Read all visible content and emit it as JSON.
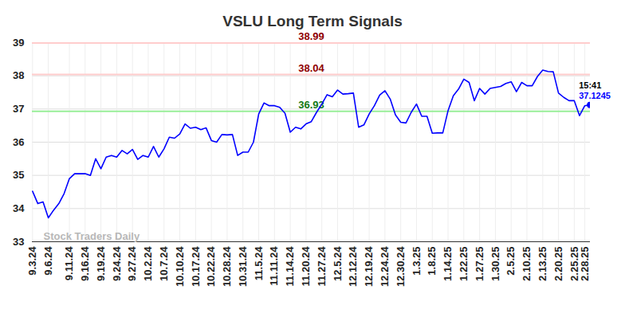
{
  "chart_data": {
    "type": "line",
    "title": "VSLU Long Term Signals",
    "categories": [
      "9.3.24",
      null,
      null,
      "9.6.24",
      null,
      null,
      null,
      "9.11.24",
      null,
      null,
      "9.16.24",
      null,
      null,
      "9.19.24",
      null,
      null,
      "9.24.24",
      null,
      null,
      "9.27.24",
      null,
      null,
      "10.2.24",
      null,
      null,
      "10.7.24",
      null,
      null,
      "10.10.24",
      null,
      null,
      "10.17.24",
      null,
      null,
      "10.22.24",
      null,
      null,
      "10.28.24",
      null,
      null,
      "10.31.24",
      null,
      null,
      "11.5.24",
      null,
      null,
      "11.11.24",
      null,
      null,
      "11.14.24",
      null,
      null,
      "11.20.24",
      null,
      null,
      "11.27.24",
      null,
      null,
      "12.5.24",
      null,
      null,
      "12.12.24",
      null,
      null,
      "12.19.24",
      null,
      null,
      "12.24.24",
      null,
      null,
      "12.30.24",
      null,
      null,
      "1.3.25",
      null,
      null,
      "1.8.25",
      null,
      null,
      "1.14.25",
      null,
      null,
      "1.22.25",
      null,
      null,
      "1.27.25",
      null,
      null,
      "1.30.25",
      null,
      null,
      "2.5.25",
      null,
      null,
      "2.10.25",
      null,
      null,
      "2.13.25",
      null,
      null,
      "2.20.25",
      null,
      null,
      "2.25.25",
      null,
      "2.28.25",
      null
    ],
    "values": [
      34.52,
      34.15,
      34.2,
      33.72,
      33.95,
      34.15,
      34.45,
      34.9,
      35.05,
      35.05,
      35.05,
      35.0,
      35.5,
      35.2,
      35.55,
      35.6,
      35.55,
      35.75,
      35.65,
      35.78,
      35.48,
      35.6,
      35.55,
      35.87,
      35.55,
      35.8,
      36.15,
      36.12,
      36.25,
      36.55,
      36.42,
      36.45,
      36.38,
      36.43,
      36.05,
      36.0,
      36.23,
      36.22,
      36.23,
      35.6,
      35.7,
      35.7,
      36.0,
      36.85,
      37.18,
      37.1,
      37.1,
      37.05,
      36.87,
      36.3,
      36.45,
      36.4,
      36.55,
      36.62,
      36.9,
      37.15,
      37.43,
      37.37,
      37.57,
      37.45,
      37.46,
      37.48,
      36.45,
      36.52,
      36.85,
      37.1,
      37.42,
      37.55,
      37.3,
      36.82,
      36.6,
      36.58,
      36.9,
      37.15,
      36.78,
      36.78,
      36.27,
      36.28,
      36.28,
      36.95,
      37.4,
      37.6,
      37.9,
      37.8,
      37.25,
      37.62,
      37.45,
      37.62,
      37.65,
      37.68,
      37.77,
      37.82,
      37.52,
      37.8,
      37.7,
      37.7,
      37.98,
      38.17,
      38.13,
      38.12,
      37.48,
      37.35,
      37.25,
      37.25,
      36.8,
      37.1,
      37.1245
    ],
    "color": "#0000ff",
    "ylim": [
      33,
      39
    ],
    "yticks": [
      33,
      34,
      35,
      36,
      37,
      38,
      39
    ],
    "grid": true,
    "reference_lines": [
      {
        "value": 38.99,
        "color": "#ffcccc"
      },
      {
        "value": 38.04,
        "color": "#ffcccc"
      },
      {
        "value": 36.93,
        "color": "#99ee99"
      }
    ],
    "last_point_label": "15:41",
    "watermark": "Stock Traders Daily"
  }
}
